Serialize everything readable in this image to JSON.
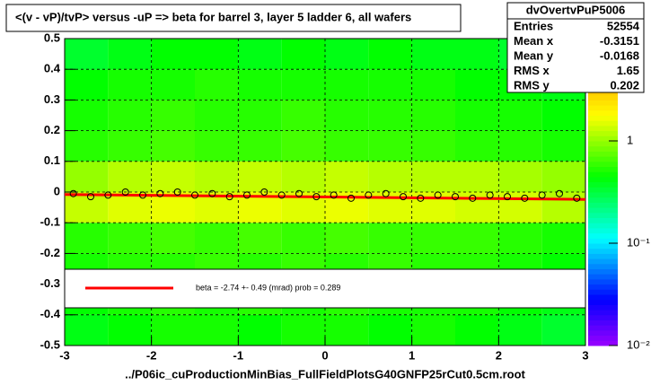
{
  "chart_data": {
    "type": "heatmap",
    "title": "<(v - vP)/tvP> versus  -uP => beta for barrel 3, layer 5 ladder 6, all wafers",
    "x_label": "../P06ic_cuProductionMinBias_FullFieldPlotsG40GNFP25rCut0.5cm.root",
    "xlim": [
      -3,
      3
    ],
    "xticks": [
      -3,
      -2,
      -1,
      0,
      1,
      2,
      3
    ],
    "ylim": [
      -0.5,
      0.5
    ],
    "yticks": [
      -0.5,
      -0.4,
      -0.3,
      -0.2,
      -0.1,
      0,
      0.1,
      0.2,
      0.3,
      0.4,
      0.5
    ],
    "grid": true,
    "log_z": true,
    "zlim": [
      0.01,
      10
    ],
    "zticks": [
      1,
      {
        "value": 0.1,
        "label": "10⁻¹"
      },
      {
        "value": 0.01,
        "label": "10⁻²"
      }
    ],
    "x_bins": [
      -3,
      -2.5,
      -2,
      -1.5,
      -1,
      -0.5,
      0,
      0.5,
      1,
      1.5,
      2,
      2.5,
      3
    ],
    "y_bins": [
      -0.5,
      -0.4,
      -0.3,
      -0.2,
      -0.1,
      0,
      0.1,
      0.2,
      0.3,
      0.4,
      0.5
    ],
    "z": [
      [
        0.4,
        0.45,
        0.5,
        0.5,
        0.45,
        0.5,
        0.5,
        0.45,
        0.5,
        0.45,
        0.4,
        0.35
      ],
      [
        0.45,
        0.5,
        0.55,
        0.5,
        0.55,
        0.5,
        0.55,
        0.5,
        0.5,
        0.5,
        0.45,
        0.4
      ],
      [
        0.5,
        0.55,
        0.55,
        0.6,
        0.55,
        0.6,
        0.55,
        0.6,
        0.55,
        0.55,
        0.5,
        0.45
      ],
      [
        0.55,
        0.6,
        0.65,
        0.6,
        0.65,
        0.6,
        0.65,
        0.6,
        0.6,
        0.6,
        0.55,
        0.5
      ],
      [
        1.3,
        1.5,
        1.6,
        1.5,
        1.6,
        1.5,
        1.6,
        1.5,
        1.5,
        1.4,
        1.4,
        1.2
      ],
      [
        1.0,
        1.2,
        1.3,
        1.2,
        1.3,
        1.2,
        1.3,
        1.2,
        1.2,
        1.2,
        1.1,
        1.0
      ],
      [
        0.55,
        0.6,
        0.65,
        0.6,
        0.6,
        0.65,
        0.6,
        0.6,
        0.6,
        0.55,
        0.55,
        0.5
      ],
      [
        0.5,
        0.55,
        0.6,
        0.55,
        0.55,
        0.6,
        0.55,
        0.55,
        0.55,
        0.5,
        0.5,
        0.45
      ],
      [
        0.45,
        0.5,
        0.5,
        0.55,
        0.5,
        0.5,
        0.5,
        0.5,
        0.5,
        0.45,
        0.45,
        0.4
      ],
      [
        0.35,
        0.4,
        0.45,
        0.45,
        0.4,
        0.45,
        0.4,
        0.45,
        0.4,
        0.4,
        0.35,
        0.35
      ]
    ],
    "profile": {
      "color": "#000000",
      "x": [
        -2.9,
        -2.7,
        -2.5,
        -2.3,
        -2.1,
        -1.9,
        -1.7,
        -1.5,
        -1.3,
        -1.1,
        -0.9,
        -0.7,
        -0.5,
        -0.3,
        -0.1,
        0.1,
        0.3,
        0.5,
        0.7,
        0.9,
        1.1,
        1.3,
        1.5,
        1.7,
        1.9,
        2.1,
        2.3,
        2.5,
        2.7,
        2.9
      ],
      "values": [
        -0.005,
        -0.015,
        -0.01,
        0.0,
        -0.01,
        -0.005,
        0.0,
        -0.01,
        -0.005,
        -0.015,
        -0.01,
        0.0,
        -0.01,
        -0.005,
        -0.015,
        -0.01,
        -0.02,
        -0.01,
        -0.005,
        -0.015,
        -0.02,
        -0.01,
        -0.015,
        -0.02,
        -0.01,
        -0.015,
        -0.02,
        -0.01,
        -0.005,
        -0.02
      ]
    },
    "fit": {
      "color": "#ff0000",
      "x": [
        -3,
        3
      ],
      "values": [
        -0.008,
        -0.024
      ]
    },
    "legend_text": "beta =    -2.74 +-   0.49 (mrad) prob = 0.289",
    "stats": {
      "name": "dvOvertvPuP5006",
      "rows": [
        [
          "Entries",
          "52554"
        ],
        [
          "Mean x",
          "-0.3151"
        ],
        [
          "Mean y",
          "-0.0168"
        ],
        [
          "RMS x",
          "1.65"
        ],
        [
          "RMS y",
          "0.202"
        ]
      ]
    }
  }
}
